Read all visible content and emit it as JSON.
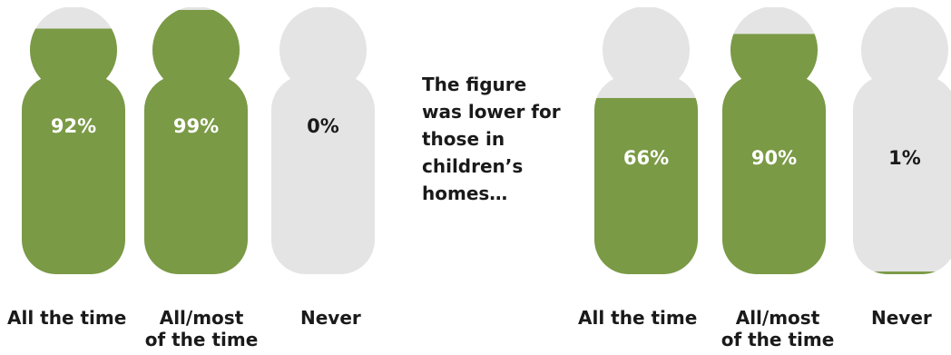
{
  "colors": {
    "fill": "#7a9a45",
    "empty": "#e4e4e4",
    "label_on_fill": "#ffffff",
    "label_on_empty": "#1a1a1a"
  },
  "note": {
    "lines": [
      "The figure",
      "was lower for",
      "those in",
      "children’s",
      "homes…"
    ]
  },
  "chart_data": [
    {
      "type": "bar",
      "style": "person-icon fill (pictogram)",
      "categories": [
        "All the time",
        "All/most of the time",
        "Never"
      ],
      "values": [
        92,
        99,
        0
      ],
      "labels": [
        "92%",
        "99%",
        "0%"
      ],
      "ylim": [
        0,
        100
      ],
      "title": "",
      "xlabel": "",
      "ylabel": ""
    },
    {
      "type": "bar",
      "style": "person-icon fill (pictogram)",
      "categories": [
        "All the time",
        "All/most of the time",
        "Never"
      ],
      "values": [
        66,
        90,
        1
      ],
      "labels": [
        "66%",
        "90%",
        "1%"
      ],
      "ylim": [
        0,
        100
      ],
      "title": "",
      "xlabel": "",
      "ylabel": ""
    }
  ],
  "category_labels": [
    {
      "line1": "All the time",
      "line2": ""
    },
    {
      "line1": "All/most",
      "line2": "of the time"
    },
    {
      "line1": "Never",
      "line2": ""
    },
    {
      "line1": "All the time",
      "line2": ""
    },
    {
      "line1": "All/most",
      "line2": "of the time"
    },
    {
      "line1": "Never",
      "line2": ""
    }
  ]
}
